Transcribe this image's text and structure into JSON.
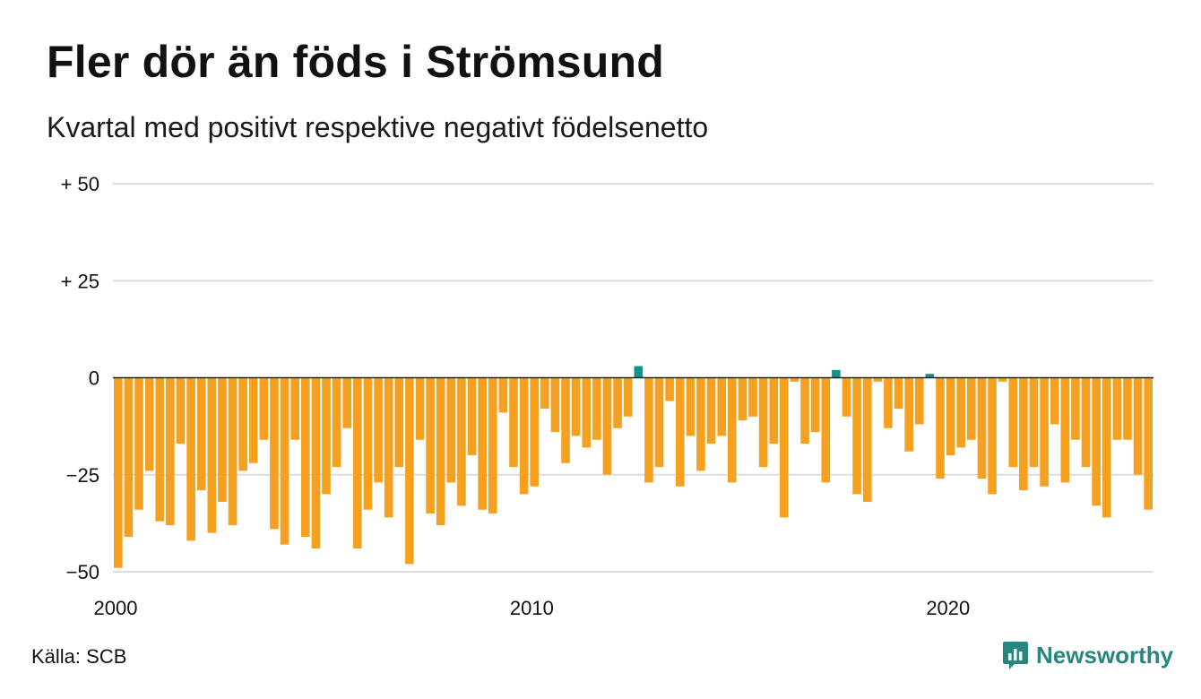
{
  "header": {
    "title": "Fler dör än föds i Strömsund",
    "subtitle": "Kvartal med positivt respektive negativt födelsenetto"
  },
  "footer": {
    "source": "Källa: SCB",
    "brand": "Newsworthy"
  },
  "colors": {
    "negative": "#f5a01f",
    "positive": "#17918a",
    "grid": "#dddddd",
    "zero": "#222222",
    "brand": "#27877f"
  },
  "chart_data": {
    "type": "bar",
    "x_start": "2000 Q1",
    "xtick_labels": [
      "2000",
      "2010",
      "2020"
    ],
    "ytick_labels": [
      "+ 50",
      "+ 25",
      "0",
      "−25",
      "−50"
    ],
    "ytick_values": [
      50,
      25,
      0,
      -25,
      -50
    ],
    "ylim": [
      -50,
      50
    ],
    "grid": true,
    "values": [
      -49,
      -41,
      -34,
      -24,
      -37,
      -38,
      -17,
      -42,
      -29,
      -40,
      -32,
      -38,
      -24,
      -22,
      -16,
      -39,
      -43,
      -16,
      -41,
      -44,
      -30,
      -23,
      -13,
      -44,
      -34,
      -27,
      -36,
      -23,
      -48,
      -16,
      -35,
      -38,
      -27,
      -33,
      -20,
      -34,
      -35,
      -9,
      -23,
      -30,
      -28,
      -8,
      -14,
      -22,
      -15,
      -18,
      -16,
      -25,
      -13,
      -10,
      3,
      -27,
      -23,
      -6,
      -28,
      -15,
      -24,
      -17,
      -15,
      -27,
      -11,
      -10,
      -23,
      -17,
      -36,
      -1,
      -17,
      -14,
      -27,
      2,
      -10,
      -30,
      -32,
      -1,
      -13,
      -8,
      -19,
      -12,
      1,
      -26,
      -20,
      -18,
      -16,
      -26,
      -30,
      -1,
      -23,
      -29,
      -23,
      -28,
      -12,
      -27,
      -16,
      -23,
      -33,
      -36,
      -16,
      -16,
      -25,
      -34
    ]
  }
}
